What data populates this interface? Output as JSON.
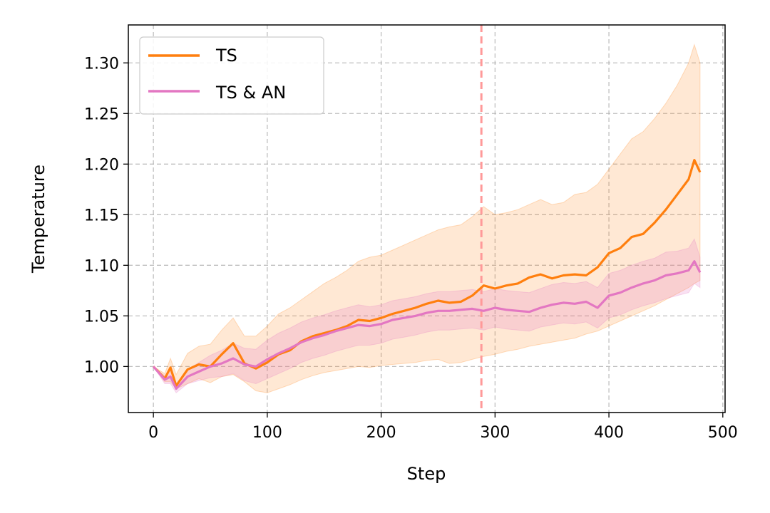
{
  "chart_data": {
    "type": "line",
    "xlabel": "Step",
    "ylabel": "Temperature",
    "xlim": [
      -22,
      502
    ],
    "ylim": [
      0.9545,
      1.3375
    ],
    "xticks": [
      0,
      100,
      200,
      300,
      400,
      500
    ],
    "xtick_labels": [
      "0",
      "100",
      "200",
      "300",
      "400",
      "500"
    ],
    "yticks": [
      1.0,
      1.05,
      1.1,
      1.15,
      1.2,
      1.25,
      1.3
    ],
    "ytick_labels": [
      "1.00",
      "1.05",
      "1.10",
      "1.15",
      "1.20",
      "1.25",
      "1.30"
    ],
    "grid": true,
    "legend_position": "top-left",
    "vline": {
      "x": 288,
      "color": "#ff9999",
      "style": "dashed"
    },
    "series": [
      {
        "name": "TS",
        "color": "#ff7f0e",
        "x": [
          0,
          10,
          15,
          20,
          30,
          40,
          50,
          60,
          70,
          80,
          90,
          100,
          110,
          120,
          130,
          140,
          150,
          160,
          170,
          180,
          190,
          200,
          210,
          220,
          230,
          240,
          250,
          260,
          270,
          280,
          290,
          300,
          310,
          320,
          330,
          340,
          350,
          360,
          370,
          380,
          390,
          400,
          410,
          420,
          430,
          440,
          450,
          460,
          470,
          475,
          480
        ],
        "values": [
          1.0,
          0.988,
          0.999,
          0.981,
          0.997,
          1.002,
          1.0,
          1.012,
          1.023,
          1.003,
          0.998,
          1.004,
          1.012,
          1.016,
          1.025,
          1.03,
          1.033,
          1.036,
          1.04,
          1.046,
          1.045,
          1.048,
          1.052,
          1.055,
          1.058,
          1.062,
          1.065,
          1.063,
          1.064,
          1.07,
          1.08,
          1.077,
          1.08,
          1.082,
          1.088,
          1.091,
          1.087,
          1.09,
          1.091,
          1.09,
          1.098,
          1.112,
          1.117,
          1.128,
          1.131,
          1.142,
          1.155,
          1.17,
          1.185,
          1.204,
          1.192
        ],
        "band_lower": [
          1.0,
          0.985,
          0.985,
          0.978,
          0.983,
          0.988,
          0.984,
          0.99,
          0.992,
          0.985,
          0.976,
          0.974,
          0.978,
          0.982,
          0.987,
          0.991,
          0.994,
          0.996,
          0.998,
          1.0,
          0.999,
          1.001,
          1.002,
          1.003,
          1.004,
          1.006,
          1.007,
          1.003,
          1.004,
          1.007,
          1.01,
          1.012,
          1.015,
          1.017,
          1.02,
          1.022,
          1.024,
          1.026,
          1.028,
          1.032,
          1.035,
          1.04,
          1.045,
          1.05,
          1.055,
          1.06,
          1.066,
          1.072,
          1.078,
          1.082,
          1.085
        ],
        "band_upper": [
          1.0,
          0.993,
          1.008,
          0.992,
          1.013,
          1.02,
          1.022,
          1.036,
          1.048,
          1.03,
          1.03,
          1.04,
          1.052,
          1.058,
          1.066,
          1.074,
          1.082,
          1.088,
          1.095,
          1.104,
          1.108,
          1.11,
          1.115,
          1.12,
          1.125,
          1.13,
          1.135,
          1.138,
          1.14,
          1.148,
          1.158,
          1.15,
          1.152,
          1.155,
          1.16,
          1.165,
          1.16,
          1.162,
          1.17,
          1.172,
          1.18,
          1.195,
          1.21,
          1.225,
          1.232,
          1.245,
          1.26,
          1.278,
          1.3,
          1.318,
          1.3
        ]
      },
      {
        "name": "TS & AN",
        "color": "#e377c2",
        "x": [
          0,
          10,
          15,
          20,
          30,
          40,
          50,
          60,
          70,
          80,
          90,
          100,
          110,
          120,
          130,
          140,
          150,
          160,
          170,
          180,
          190,
          200,
          210,
          220,
          230,
          240,
          250,
          260,
          270,
          280,
          290,
          300,
          310,
          320,
          330,
          340,
          350,
          360,
          370,
          380,
          390,
          400,
          410,
          420,
          430,
          440,
          450,
          460,
          470,
          475,
          480
        ],
        "values": [
          1.0,
          0.987,
          0.99,
          0.978,
          0.99,
          0.995,
          1.0,
          1.003,
          1.008,
          1.002,
          1.0,
          1.007,
          1.013,
          1.018,
          1.024,
          1.028,
          1.031,
          1.035,
          1.038,
          1.041,
          1.04,
          1.042,
          1.046,
          1.048,
          1.05,
          1.053,
          1.055,
          1.055,
          1.056,
          1.057,
          1.055,
          1.058,
          1.056,
          1.055,
          1.054,
          1.058,
          1.061,
          1.063,
          1.062,
          1.064,
          1.058,
          1.07,
          1.073,
          1.078,
          1.082,
          1.085,
          1.09,
          1.092,
          1.095,
          1.104,
          1.093
        ],
        "band_lower": [
          1.0,
          0.983,
          0.983,
          0.974,
          0.983,
          0.986,
          0.989,
          0.99,
          0.993,
          0.986,
          0.983,
          0.988,
          0.993,
          0.998,
          1.004,
          1.008,
          1.011,
          1.015,
          1.018,
          1.021,
          1.021,
          1.023,
          1.027,
          1.029,
          1.031,
          1.034,
          1.036,
          1.036,
          1.037,
          1.038,
          1.036,
          1.039,
          1.037,
          1.036,
          1.035,
          1.039,
          1.041,
          1.043,
          1.042,
          1.044,
          1.038,
          1.048,
          1.051,
          1.056,
          1.06,
          1.063,
          1.067,
          1.07,
          1.073,
          1.082,
          1.078
        ],
        "band_upper": [
          1.0,
          0.991,
          0.997,
          0.982,
          0.997,
          1.004,
          1.011,
          1.016,
          1.023,
          1.018,
          1.017,
          1.026,
          1.033,
          1.038,
          1.044,
          1.048,
          1.051,
          1.055,
          1.058,
          1.061,
          1.059,
          1.061,
          1.065,
          1.067,
          1.069,
          1.072,
          1.074,
          1.074,
          1.075,
          1.076,
          1.074,
          1.077,
          1.075,
          1.074,
          1.073,
          1.077,
          1.081,
          1.083,
          1.082,
          1.084,
          1.078,
          1.092,
          1.095,
          1.1,
          1.104,
          1.107,
          1.113,
          1.114,
          1.117,
          1.126,
          1.108
        ]
      }
    ]
  }
}
